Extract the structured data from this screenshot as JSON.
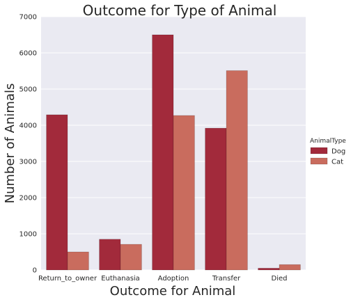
{
  "chart_data": {
    "type": "bar",
    "title": "Outcome for Type of Animal",
    "xlabel": "Outcome for Animal",
    "ylabel": "Number of Animals",
    "ylim": [
      0,
      7000
    ],
    "yticks": [
      0,
      1000,
      2000,
      3000,
      4000,
      5000,
      6000,
      7000
    ],
    "grid": true,
    "categories": [
      "Return_to_owner",
      "Euthanasia",
      "Adoption",
      "Transfer",
      "Died"
    ],
    "series": [
      {
        "name": "Dog",
        "color": "#a22a3b",
        "values": [
          4290,
          850,
          6500,
          3920,
          50
        ]
      },
      {
        "name": "Cat",
        "color": "#c96c5e",
        "values": [
          500,
          710,
          4270,
          5510,
          150
        ]
      }
    ],
    "legend": {
      "title": "AnimalType",
      "placement": "right"
    }
  }
}
